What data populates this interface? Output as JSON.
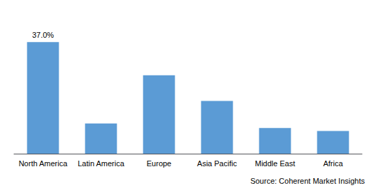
{
  "chart_data": {
    "type": "bar",
    "categories": [
      "North America",
      "Latin America",
      "Europe",
      "Asia Pacific",
      "Middle East",
      "Africa"
    ],
    "values": [
      37.0,
      10.0,
      26.0,
      17.5,
      8.5,
      7.5
    ],
    "value_labels": [
      "37.0%",
      null,
      null,
      null,
      null,
      null
    ],
    "data_labels": true,
    "color": "#5B9BD5",
    "ylim": [
      0,
      44
    ],
    "grid": false,
    "tick_labels": "x",
    "source": "Source: Coherent Market Insights"
  }
}
